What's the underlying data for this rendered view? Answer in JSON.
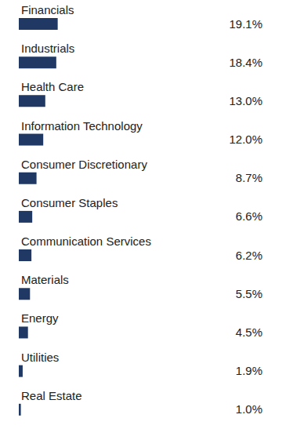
{
  "chart_data": {
    "type": "bar",
    "orientation": "horizontal",
    "categories": [
      "Financials",
      "Industrials",
      "Health Care",
      "Information Technology",
      "Consumer Discretionary",
      "Consumer Staples",
      "Communication Services",
      "Materials",
      "Energy",
      "Utilities",
      "Real Estate"
    ],
    "values": [
      19.1,
      18.4,
      13.0,
      12.0,
      8.7,
      6.6,
      6.2,
      5.5,
      4.5,
      1.9,
      1.0
    ],
    "value_labels": [
      "19.1%",
      "18.4%",
      "13.0%",
      "12.0%",
      "8.7%",
      "6.6%",
      "6.2%",
      "5.5%",
      "4.5%",
      "1.9%",
      "1.0%"
    ],
    "data_labels": true,
    "color": "#1f3864",
    "xlim": [
      0,
      60
    ],
    "tick_labels": false,
    "grid": false
  }
}
